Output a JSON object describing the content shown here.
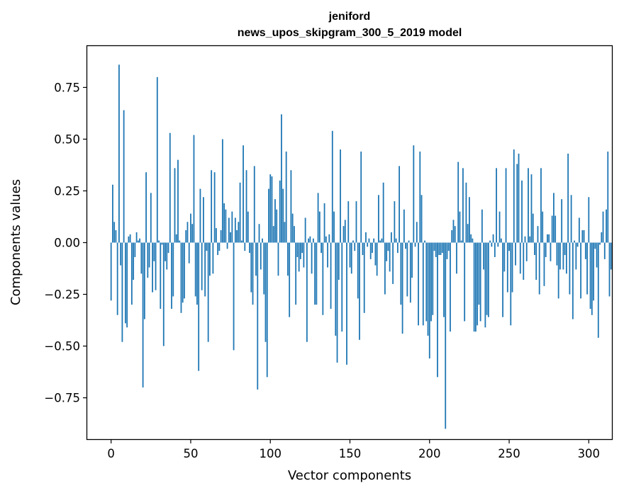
{
  "chart_data": {
    "type": "bar",
    "title": [
      "jeniford",
      "news_upos_skipgram_300_5_2019 model"
    ],
    "xlabel": "Vector components",
    "ylabel": "Components values",
    "xlim": [
      -15,
      315
    ],
    "ylim": [
      -0.95,
      0.95
    ],
    "xticks": [
      0,
      50,
      100,
      150,
      200,
      250,
      300
    ],
    "xtick_labels": [
      "0",
      "50",
      "100",
      "150",
      "200",
      "250",
      "300"
    ],
    "yticks": [
      -0.75,
      -0.5,
      -0.25,
      0.0,
      0.25,
      0.5,
      0.75
    ],
    "ytick_labels": [
      "−0.75",
      "−0.50",
      "−0.25",
      "0.00",
      "0.25",
      "0.50",
      "0.75"
    ],
    "bar_color": "#1f77b4",
    "grid": false,
    "values": [
      -0.28,
      0.28,
      0.1,
      0.06,
      -0.35,
      0.86,
      -0.11,
      -0.48,
      0.64,
      -0.39,
      -0.41,
      0.03,
      0.04,
      -0.3,
      -0.18,
      -0.07,
      0.05,
      0.01,
      0.02,
      -0.15,
      -0.7,
      -0.37,
      0.34,
      -0.17,
      -0.12,
      0.24,
      -0.24,
      -0.09,
      -0.23,
      0.8,
      0.01,
      -0.32,
      -0.01,
      -0.5,
      -0.09,
      -0.13,
      -0.05,
      0.53,
      -0.32,
      -0.26,
      0.36,
      0.04,
      0.4,
      0.01,
      -0.34,
      -0.29,
      -0.27,
      0.06,
      0.1,
      -0.1,
      0.14,
      0.09,
      0.52,
      -0.26,
      -0.3,
      -0.62,
      0.26,
      -0.23,
      0.22,
      -0.26,
      -0.04,
      -0.48,
      -0.16,
      0.35,
      -0.15,
      0.34,
      0.07,
      -0.06,
      -0.04,
      0.06,
      0.5,
      0.19,
      0.16,
      -0.03,
      0.12,
      0.05,
      0.15,
      -0.52,
      0.12,
      0.06,
      0.1,
      0.29,
      0.01,
      0.47,
      -0.04,
      0.35,
      0.15,
      -0.05,
      -0.24,
      -0.3,
      0.37,
      -0.16,
      -0.71,
      0.09,
      -0.13,
      0.02,
      -0.25,
      -0.48,
      -0.65,
      0.26,
      0.33,
      0.32,
      0.08,
      0.21,
      0.16,
      -0.16,
      0.3,
      0.62,
      0.26,
      0.1,
      0.44,
      -0.16,
      -0.36,
      0.35,
      0.14,
      0.08,
      -0.3,
      -0.07,
      -0.14,
      -0.08,
      -0.05,
      -0.12,
      0.12,
      -0.48,
      0.02,
      0.03,
      -0.15,
      0.02,
      -0.3,
      -0.3,
      0.24,
      0.15,
      -0.05,
      -0.35,
      0.19,
      0.03,
      -0.12,
      0.04,
      -0.32,
      0.54,
      0.15,
      -0.45,
      -0.58,
      -0.18,
      0.45,
      -0.43,
      0.08,
      0.11,
      -0.59,
      0.2,
      -0.12,
      -0.15,
      0.01,
      -0.04,
      0.2,
      -0.27,
      -0.47,
      0.44,
      -0.06,
      -0.34,
      0.05,
      -0.02,
      0.02,
      -0.08,
      -0.05,
      0.02,
      -0.11,
      -0.16,
      0.23,
      0.01,
      0.02,
      0.29,
      -0.25,
      -0.09,
      -0.04,
      -0.14,
      0.05,
      -0.2,
      0.2,
      0.02,
      -0.05,
      0.37,
      -0.3,
      -0.44,
      0.16,
      -0.03,
      -0.26,
      0.01,
      -0.29,
      -0.17,
      0.47,
      -0.02,
      0.1,
      -0.4,
      0.44,
      0.23,
      -0.4,
      0.01,
      -0.38,
      -0.45,
      -0.56,
      -0.38,
      -0.35,
      -0.04,
      -0.07,
      -0.65,
      -0.06,
      -0.06,
      -0.05,
      -0.36,
      -0.9,
      -0.08,
      -0.04,
      -0.43,
      0.06,
      0.11,
      0.08,
      -0.15,
      0.39,
      0.15,
      0.01,
      0.36,
      -0.38,
      0.29,
      0.09,
      0.22,
      0.04,
      0.02,
      -0.43,
      -0.43,
      -0.4,
      -0.3,
      -0.38,
      0.16,
      -0.13,
      -0.41,
      -0.35,
      -0.36,
      0.01,
      -0.02,
      0.04,
      -0.07,
      0.36,
      -0.02,
      0.15,
      0.02,
      -0.36,
      -0.14,
      0.36,
      -0.24,
      -0.04,
      -0.4,
      -0.24,
      0.45,
      -0.11,
      0.38,
      0.43,
      -0.15,
      0.3,
      -0.18,
      0.03,
      -0.09,
      0.36,
      0.03,
      0.33,
      0.14,
      -0.06,
      -0.18,
      0.08,
      -0.25,
      0.36,
      0.15,
      -0.21,
      -0.07,
      0.04,
      0.04,
      -0.09,
      0.13,
      0.24,
      0.13,
      -0.11,
      -0.27,
      -0.13,
      0.21,
      -0.13,
      -0.06,
      -0.15,
      0.43,
      -0.25,
      0.23,
      -0.37,
      0.01,
      -0.13,
      -0.02,
      0.12,
      -0.27,
      0.06,
      0.06,
      -0.08,
      -0.25,
      0.22,
      -0.32,
      -0.35,
      -0.28,
      -0.03,
      -0.12,
      -0.46,
      -0.01,
      0.05,
      0.15,
      -0.08,
      0.16,
      0.44,
      -0.26,
      -0.13
    ]
  }
}
